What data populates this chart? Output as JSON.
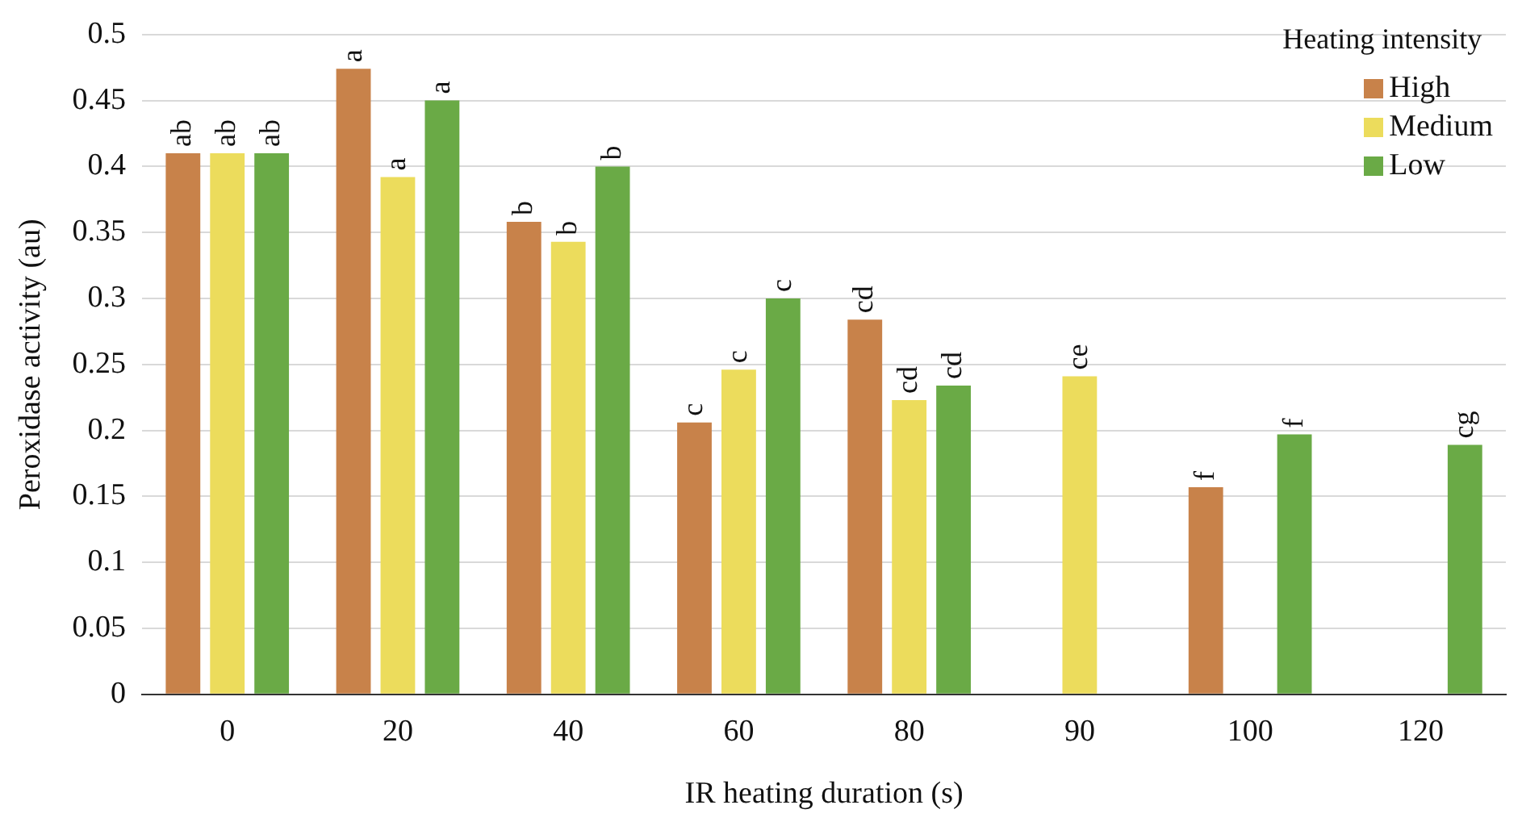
{
  "chart_data": {
    "type": "bar",
    "xlabel": "IR heating duration (s)",
    "ylabel": "Peroxidase activity (au)",
    "legend_title": "Heating intensity",
    "categories": [
      "0",
      "20",
      "40",
      "60",
      "80",
      "90",
      "100",
      "120"
    ],
    "series": [
      {
        "name": "High",
        "color": "#c8824a",
        "values": [
          0.41,
          0.474,
          0.358,
          0.206,
          0.284,
          null,
          0.157,
          null
        ],
        "value_labels": [
          "ab",
          "a",
          "b",
          "c",
          "cd",
          null,
          "f",
          null
        ]
      },
      {
        "name": "Medium",
        "color": "#ecdc5c",
        "values": [
          0.41,
          0.392,
          0.343,
          0.246,
          0.223,
          0.241,
          null,
          null
        ],
        "value_labels": [
          "ab",
          "a",
          "b",
          "c",
          "cd",
          "ce",
          null,
          null
        ]
      },
      {
        "name": "Low",
        "color": "#6aaa46",
        "values": [
          0.41,
          0.45,
          0.4,
          0.3,
          0.234,
          null,
          0.197,
          0.189
        ],
        "value_labels": [
          "ab",
          "a",
          "b",
          "c",
          "cd",
          null,
          "f",
          "cg"
        ]
      }
    ],
    "ylim": [
      0,
      0.5
    ],
    "yticks": [
      0,
      0.05,
      0.1,
      0.15,
      0.2,
      0.25,
      0.3,
      0.35,
      0.4,
      0.45,
      0.5
    ],
    "grid": "y",
    "legend": "top right"
  }
}
